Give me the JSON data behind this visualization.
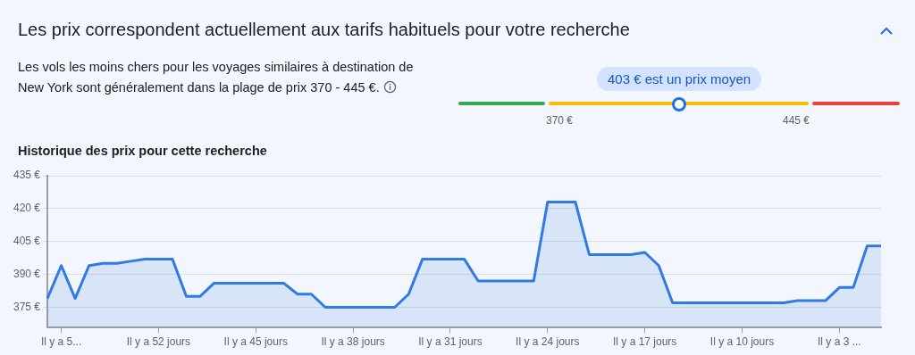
{
  "chart_data": [
    {
      "type": "other",
      "title": "Les prix correspondent actuellement aux tarifs habituels pour votre recherche",
      "subtitle": "Les vols les moins chers pour les voyages similaires à destination de New York sont généralement dans la plage de prix 370 - 445 €.",
      "annotations": [
        "403 € est un prix moyen",
        "370 €",
        "445 €"
      ]
    },
    {
      "type": "area",
      "title": "Historique des prix pour cette recherche",
      "categories": [
        null,
        "Il y a 5...",
        null,
        null,
        null,
        null,
        null,
        null,
        "Il y a 52 jours",
        null,
        null,
        null,
        null,
        null,
        null,
        "Il y a 45 jours",
        null,
        null,
        null,
        null,
        null,
        null,
        "Il y a 38 jours",
        null,
        null,
        null,
        null,
        null,
        null,
        "Il y a 31 jours",
        null,
        null,
        null,
        null,
        null,
        null,
        "Il y a 24 jours",
        null,
        null,
        null,
        null,
        null,
        null,
        "Il y a 17 jours",
        null,
        null,
        null,
        null,
        null,
        null,
        "Il y a 10 jours",
        null,
        null,
        null,
        null,
        null,
        null,
        "Il y a 3 ...",
        null,
        null,
        null
      ],
      "series": [
        {
          "color": "#2f7ae5",
          "values": [
            379,
            394,
            379,
            394,
            395,
            395,
            396,
            397,
            397,
            397,
            380,
            380,
            386,
            386,
            386,
            386,
            386,
            386,
            381,
            381,
            375,
            375,
            375,
            375,
            375,
            375,
            381,
            397,
            397,
            397,
            397,
            387,
            387,
            387,
            387,
            387,
            423,
            423,
            423,
            399,
            399,
            399,
            399,
            400,
            394,
            377,
            377,
            377,
            377,
            377,
            377,
            377,
            377,
            377,
            378,
            378,
            378,
            384,
            384,
            403,
            403
          ]
        }
      ],
      "ylim": [
        366,
        435
      ],
      "yticks": [
        {
          "value": 375,
          "label": "375 €"
        },
        {
          "value": 390,
          "label": "390 €"
        },
        {
          "value": 405,
          "label": "405 €"
        },
        {
          "value": 420,
          "label": "420 €"
        },
        {
          "value": 435,
          "label": "435 €"
        }
      ],
      "grid": "y",
      "legend": false,
      "marker": "none",
      "line_style": "solid"
    }
  ]
}
